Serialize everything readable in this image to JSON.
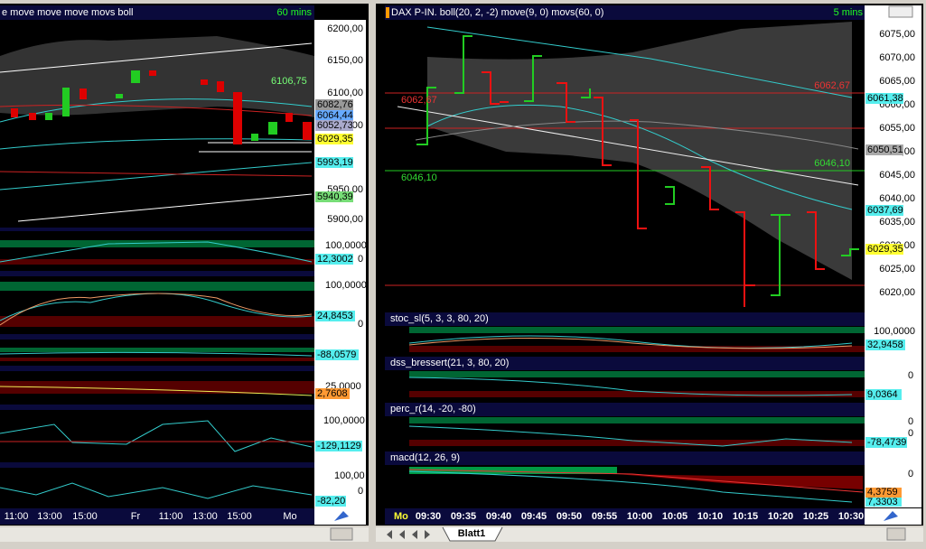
{
  "left_panel": {
    "title": "e move move move movs boll",
    "timeframe": "60 mins",
    "price_axis": [
      "6200,00",
      "6150,00",
      "6100,00",
      "6050,00",
      "5950,00",
      "5900,00"
    ],
    "price_labels": [
      "6082,76",
      "6064,44",
      "6052,73",
      "6029,35",
      "5993,19",
      "5940,39"
    ],
    "annotation": "6106,75",
    "indicators": [
      [
        "100,0000",
        "12,3002",
        "0"
      ],
      [
        "100,0000",
        "24,8453",
        "0"
      ],
      [
        "-88,0579"
      ],
      [
        "25,0000",
        "2,7608"
      ],
      [
        "100,0000",
        "-129,1129"
      ],
      [
        "100,00",
        "0",
        "-82,20"
      ]
    ],
    "time_axis": [
      "11:00",
      "13:00",
      "15:00",
      "Fr",
      "11:00",
      "13:00",
      "15:00",
      "Mo"
    ]
  },
  "right_panel": {
    "title": "DAX P-IN. boll(20, 2, -2) move(9, 0) movs(60, 0)",
    "timeframe": "5 mins",
    "price_axis": [
      "6075,00",
      "6070,00",
      "6065,00",
      "6060,00",
      "6055,00",
      "6050,00",
      "6045,00",
      "6040,00",
      "6035,00",
      "6030,00",
      "6025,00",
      "6020,00"
    ],
    "price_labels": [
      "6061,38",
      "6050,51",
      "6037,69",
      "6029,35"
    ],
    "annotations": [
      "6062,67",
      "6062,67",
      "6046,10",
      "6046,10"
    ],
    "indicators": [
      {
        "name": "stoc_sl(5, 3, 3, 80, 20)",
        "labels": [
          "100,0000",
          "32,9458"
        ]
      },
      {
        "name": "dss_bressert(21, 3, 80, 20)",
        "labels": [
          "0",
          "9,0364"
        ]
      },
      {
        "name": "perc_r(14, -20, -80)",
        "labels": [
          "0",
          "0",
          "-78,4739"
        ]
      },
      {
        "name": "macd(12, 26, 9)",
        "labels": [
          "0",
          "4,3759",
          "7,3303"
        ]
      }
    ],
    "time_axis": [
      "Mo",
      "09:30",
      "09:35",
      "09:40",
      "09:45",
      "09:50",
      "09:55",
      "10:00",
      "10:05",
      "10:10",
      "10:15",
      "10:20",
      "10:25",
      "10:30"
    ]
  },
  "tabs": {
    "sheet": "Blatt1"
  }
}
